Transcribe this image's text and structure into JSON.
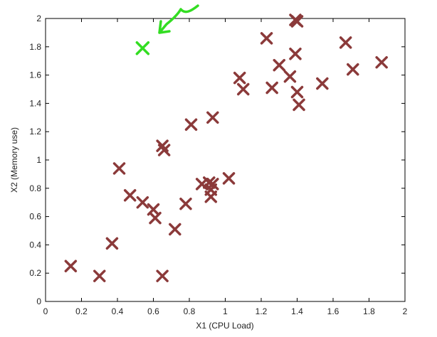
{
  "chart_data": {
    "type": "scatter",
    "xlabel": "X1 (CPU Load)",
    "ylabel": "X2 (Memory use)",
    "xlim": [
      0,
      2
    ],
    "ylim": [
      0,
      2
    ],
    "xticks": [
      "0",
      "0.2",
      "0.4",
      "0.6",
      "0.8",
      "1",
      "1.2",
      "1.4",
      "1.6",
      "1.8",
      "2"
    ],
    "yticks": [
      "0",
      "0.2",
      "0.4",
      "0.6",
      "0.8",
      "1",
      "1.2",
      "1.4",
      "1.6",
      "1.8",
      "2"
    ],
    "grid": false,
    "series": [
      {
        "marker": "x",
        "color": "#8b3a3a",
        "points": [
          [
            0.14,
            0.25
          ],
          [
            0.3,
            0.18
          ],
          [
            0.37,
            0.41
          ],
          [
            0.41,
            0.94
          ],
          [
            0.47,
            0.75
          ],
          [
            0.54,
            0.7
          ],
          [
            0.6,
            0.65
          ],
          [
            0.61,
            0.59
          ],
          [
            0.65,
            0.18
          ],
          [
            0.65,
            1.1
          ],
          [
            0.66,
            1.07
          ],
          [
            0.72,
            0.51
          ],
          [
            0.78,
            0.69
          ],
          [
            0.81,
            1.25
          ],
          [
            0.87,
            0.83
          ],
          [
            0.91,
            0.84
          ],
          [
            0.92,
            0.79
          ],
          [
            0.92,
            0.74
          ],
          [
            0.93,
            0.83
          ],
          [
            0.93,
            1.3
          ],
          [
            1.02,
            0.87
          ],
          [
            1.08,
            1.58
          ],
          [
            1.1,
            1.5
          ],
          [
            1.23,
            1.86
          ],
          [
            1.26,
            1.51
          ],
          [
            1.3,
            1.67
          ],
          [
            1.36,
            1.59
          ],
          [
            1.39,
            1.99
          ],
          [
            1.4,
            1.98
          ],
          [
            1.39,
            1.75
          ],
          [
            1.4,
            1.48
          ],
          [
            1.41,
            1.39
          ],
          [
            1.54,
            1.54
          ],
          [
            1.67,
            1.83
          ],
          [
            1.71,
            1.64
          ],
          [
            1.87,
            1.69
          ]
        ]
      }
    ],
    "annotation": {
      "marker": "x",
      "color": "#33dd22",
      "point": [
        0.54,
        1.79
      ]
    }
  }
}
